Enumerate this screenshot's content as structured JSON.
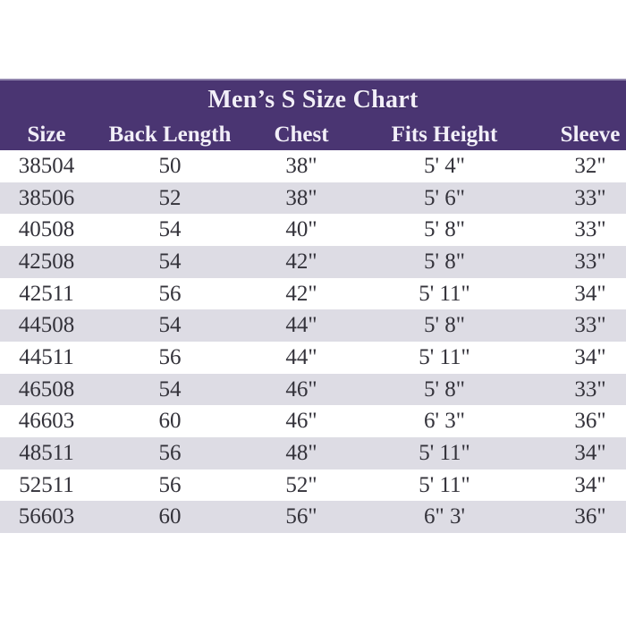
{
  "colors": {
    "header_bg": "#4a3572",
    "header_top_edge": "#9186ad",
    "header_text": "#f2eff8",
    "stripe_bg": "#dddce4",
    "body_text": "#33323a",
    "page_bg": "#ffffff"
  },
  "chart_data": {
    "type": "table",
    "title": "Men’s S Size Chart",
    "columns": [
      "Size",
      "Back Length",
      "Chest",
      "Fits Height",
      "Sleeve"
    ],
    "rows": [
      [
        "38504",
        "50",
        "38\"",
        "5' 4\"",
        "32\""
      ],
      [
        "38506",
        "52",
        "38\"",
        "5' 6\"",
        "33\""
      ],
      [
        "40508",
        "54",
        "40\"",
        "5' 8\"",
        "33\""
      ],
      [
        "42508",
        "54",
        "42\"",
        "5' 8\"",
        "33\""
      ],
      [
        "42511",
        "56",
        "42\"",
        "5' 11\"",
        "34\""
      ],
      [
        "44508",
        "54",
        "44\"",
        "5' 8\"",
        "33\""
      ],
      [
        "44511",
        "56",
        "44\"",
        "5' 11\"",
        "34\""
      ],
      [
        "46508",
        "54",
        "46\"",
        "5' 8\"",
        "33\""
      ],
      [
        "46603",
        "60",
        "46\"",
        "6' 3\"",
        "36\""
      ],
      [
        "48511",
        "56",
        "48\"",
        "5' 11\"",
        "34\""
      ],
      [
        "52511",
        "56",
        "52\"",
        "5' 11\"",
        "34\""
      ],
      [
        "56603",
        "60",
        "56\"",
        "6\" 3'",
        "36\""
      ]
    ],
    "layout_hints": {
      "stripe_rows": "even rows (2nd, 4th, ...) shaded",
      "alignment": "all columns centered"
    }
  }
}
